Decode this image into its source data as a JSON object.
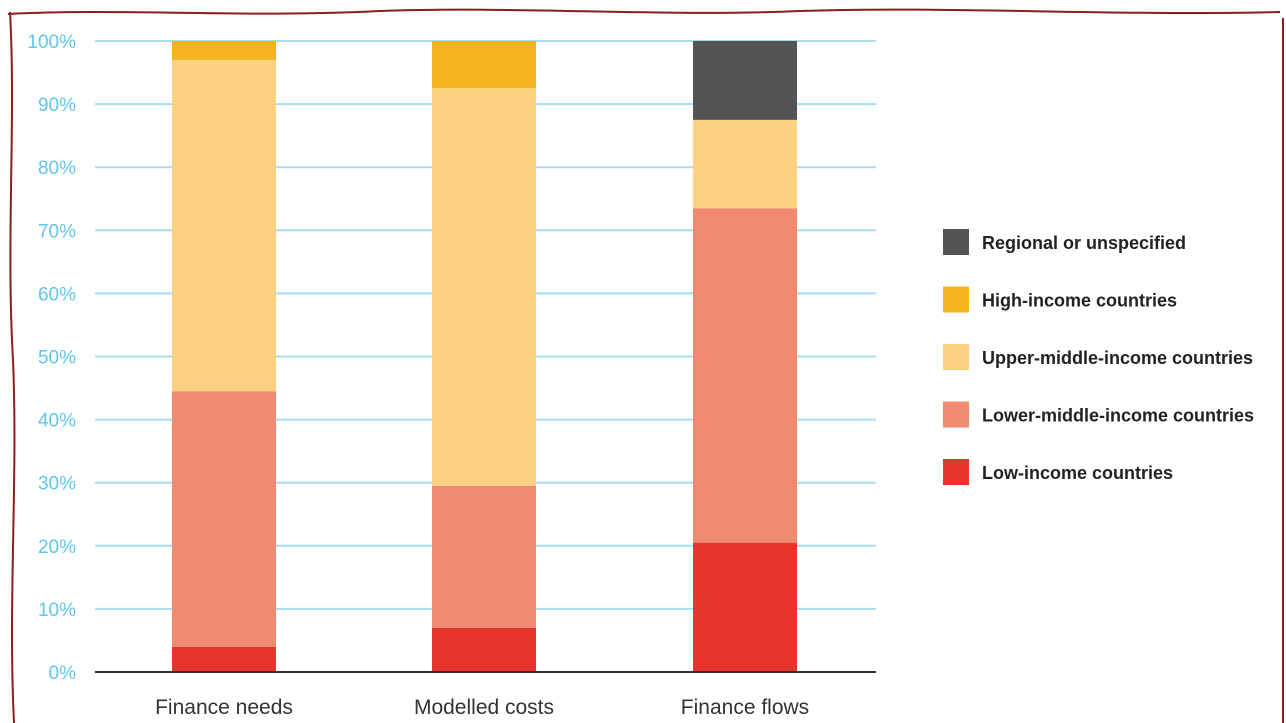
{
  "chart_data": {
    "type": "bar",
    "stacked": true,
    "categories": [
      "Finance needs",
      "Modelled costs",
      "Finance flows"
    ],
    "series": [
      {
        "name": "Low-income countries",
        "color": "#e5352c",
        "values": [
          4,
          7,
          20.5
        ]
      },
      {
        "name": "Lower-middle-income countries",
        "color": "#f08a70",
        "values": [
          40.5,
          22.5,
          53
        ]
      },
      {
        "name": "Upper-middle-income countries",
        "color": "#fcd17f",
        "values": [
          52.5,
          63,
          14
        ]
      },
      {
        "name": "High-income countries",
        "color": "#f6b51e",
        "values": [
          3,
          7.5,
          0
        ]
      },
      {
        "name": "Regional or unspecified",
        "color": "#545456",
        "values": [
          0,
          0,
          12.5
        ]
      }
    ],
    "legend_order": [
      "Regional or unspecified",
      "High-income countries",
      "Upper-middle-income countries",
      "Lower-middle-income countries",
      "Low-income countries"
    ],
    "y_ticks": [
      "0%",
      "10%",
      "20%",
      "30%",
      "40%",
      "50%",
      "60%",
      "70%",
      "80%",
      "90%",
      "100%"
    ],
    "ylim": [
      0,
      100
    ],
    "grid": true,
    "legend_position": "right",
    "grid_color": "#a8dcf0",
    "border_color": "#8a1f1f"
  }
}
